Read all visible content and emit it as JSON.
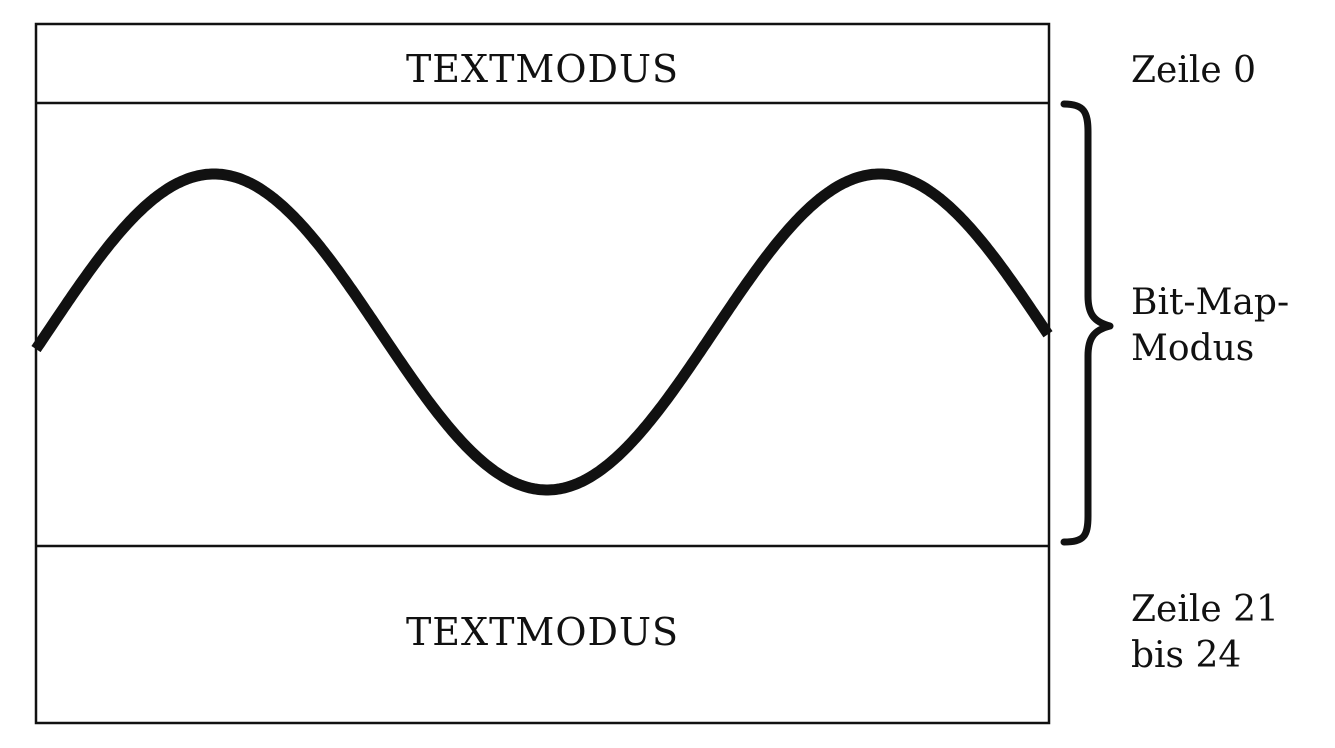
{
  "top_section": {
    "label": "TEXTMODUS"
  },
  "bottom_section": {
    "label": "TEXTMODUS"
  },
  "annotations": {
    "top_row": "Zeile 0",
    "middle_line1": "Bit-Map-",
    "middle_line2": "Modus",
    "bottom_line1": "Zeile 21",
    "bottom_line2": "bis 24"
  },
  "colors": {
    "ink": "#111111",
    "background": "#ffffff"
  },
  "icons": {
    "waveform": "sine-wave",
    "brace": "right-curly-brace"
  }
}
